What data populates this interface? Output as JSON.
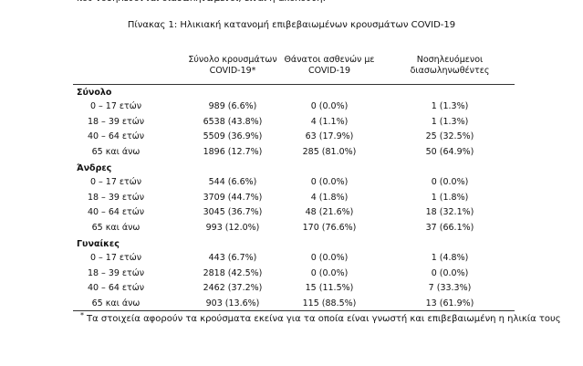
{
  "header": {
    "intro": "που νοσηλεύονται διασωληνωμένοι, είναι η ακόλουθη:",
    "caption": "Πίνακας 1: Ηλικιακή κατανομή επιβεβαιωμένων κρουσμάτων COVID-19"
  },
  "table": {
    "columns": [
      "Σύνολο κρουσμάτων COVID-19*",
      "Θάνατοι ασθενών με COVID-19",
      "Νοσηλευόμενοι διασωληνωθέντες"
    ],
    "sections": [
      {
        "title": "Σύνολο",
        "rows": [
          [
            "0 – 17 ετών",
            "989 (6.6%)",
            "0 (0.0%)",
            "1 (1.3%)"
          ],
          [
            "18 – 39 ετών",
            "6538 (43.8%)",
            "4 (1.1%)",
            "1 (1.3%)"
          ],
          [
            "40 – 64 ετών",
            "5509 (36.9%)",
            "63 (17.9%)",
            "25 (32.5%)"
          ],
          [
            "65 και άνω",
            "1896 (12.7%)",
            "285 (81.0%)",
            "50 (64.9%)"
          ]
        ]
      },
      {
        "title": "Άνδρες",
        "rows": [
          [
            "0 – 17 ετών",
            "544 (6.6%)",
            "0 (0.0%)",
            "0 (0.0%)"
          ],
          [
            "18 – 39 ετών",
            "3709 (44.7%)",
            "4 (1.8%)",
            "1 (1.8%)"
          ],
          [
            "40 – 64 ετών",
            "3045 (36.7%)",
            "48 (21.6%)",
            "18 (32.1%)"
          ],
          [
            "65 και άνω",
            "993 (12.0%)",
            "170 (76.6%)",
            "37 (66.1%)"
          ]
        ]
      },
      {
        "title": "Γυναίκες",
        "rows": [
          [
            "0 – 17 ετών",
            "443 (6.7%)",
            "0 (0.0%)",
            "1 (4.8%)"
          ],
          [
            "18 – 39 ετών",
            "2818 (42.5%)",
            "0 (0.0%)",
            "0 (0.0%)"
          ],
          [
            "40 – 64 ετών",
            "2462 (37.2%)",
            "15 (11.5%)",
            "7 (33.3%)"
          ],
          [
            "65 και άνω",
            "903 (13.6%)",
            "115 (88.5%)",
            "13 (61.9%)"
          ]
        ]
      }
    ]
  },
  "footnote": {
    "marker": "*",
    "text": "Τα στοιχεία αφορούν τα κρούσματα εκείνα για τα οποία είναι γνωστή και επιβεβαιωμένη η ηλικία τους"
  }
}
